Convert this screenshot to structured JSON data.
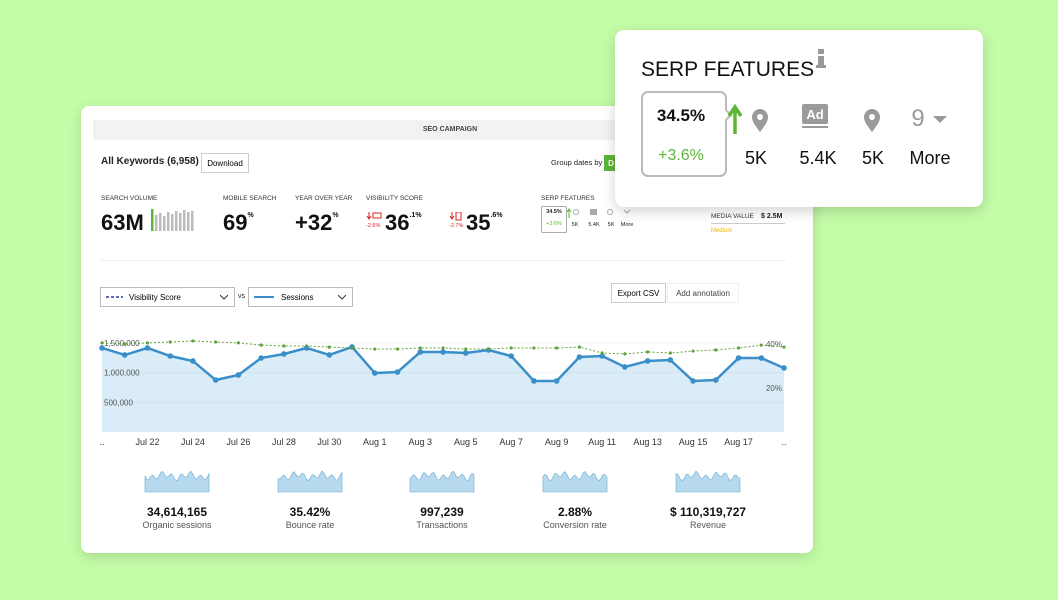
{
  "header": {
    "title": "SEO CAMPAIGN"
  },
  "toolbar": {
    "keywords": "All Keywords (6,958)",
    "download": "Download",
    "group_dates": "Group dates by",
    "group_button": "D"
  },
  "metrics": [
    {
      "label": "SEARCH VOLUME",
      "value": "63M"
    },
    {
      "label": "MOBILE SEARCH",
      "value": "69",
      "unit": "%"
    },
    {
      "label": "YEAR OVER YEAR",
      "value": "+32",
      "unit": "%"
    },
    {
      "label": "VISIBILITY SCORE",
      "value": "36",
      "unit": ".1%",
      "change": "-2.6%"
    },
    {
      "value": "35",
      "unit": ".6%",
      "change": "-2.7%"
    }
  ],
  "serp_mini": {
    "label": "SERP FEATURES",
    "share": "34.5%",
    "change": "+3.6%",
    "items": [
      "5K",
      "5.4K",
      "5K",
      "More"
    ]
  },
  "media": {
    "label": "MEDIA VALUE",
    "value": "$ 2.5M",
    "level": "Medium"
  },
  "controls": {
    "vs": "vs",
    "export": "Export CSV",
    "annotate": "Add annotation"
  },
  "chart": {
    "type": "line",
    "categories": [
      "..",
      null,
      "Jul 22",
      null,
      "Jul 24",
      null,
      "Jul 26",
      null,
      "Jul 28",
      null,
      "Jul 30",
      null,
      "Aug 1",
      null,
      "Aug 3",
      null,
      "Aug 5",
      null,
      "Aug 7",
      null,
      "Aug 9",
      null,
      "Aug 11",
      null,
      "Aug 13",
      null,
      "Aug 15",
      null,
      "Aug 17",
      null,
      ".."
    ],
    "series": [
      {
        "name": "Sessions",
        "color": "#3a8fc9",
        "values": [
          1416000,
          1298000,
          1416000,
          1281000,
          1197000,
          876000,
          961000,
          1247000,
          1315000,
          1416000,
          1298000,
          1433000,
          994000,
          1011000,
          1348000,
          1348000,
          1331000,
          1382000,
          1281000,
          860000,
          860000,
          1264000,
          1281000,
          1096000,
          1197000,
          1214000,
          860000,
          876000,
          1247000,
          1247000,
          1079000
        ]
      },
      {
        "name": "Visibility Score",
        "color": "#5ea33a",
        "axis": "y2",
        "values": [
          40.5,
          40.0,
          40.5,
          40.9,
          41.4,
          40.9,
          40.5,
          39.5,
          39.1,
          39.1,
          38.6,
          38.2,
          37.7,
          37.7,
          38.2,
          38.2,
          37.7,
          37.7,
          38.2,
          38.2,
          38.2,
          38.6,
          35.9,
          35.5,
          36.4,
          35.9,
          36.8,
          37.3,
          38.2,
          39.5,
          38.6
        ]
      }
    ],
    "ylim": [
      0,
      1500000
    ],
    "yticks": [
      {
        "value": 500000,
        "label": "500,000"
      },
      {
        "value": 1000000,
        "label": "1,000,000"
      },
      {
        "value": 1500000,
        "label": "1,500,000"
      }
    ],
    "y2lim": [
      0,
      40
    ],
    "y2ticks": [
      {
        "value": 20,
        "label": "20%"
      },
      {
        "value": 40,
        "label": "40%"
      }
    ]
  },
  "stats": [
    {
      "value": "34,614,165",
      "label": "Organic sessions"
    },
    {
      "value": "35.42%",
      "label": "Bounce rate"
    },
    {
      "value": "997,239",
      "label": "Transactions"
    },
    {
      "value": "2.88%",
      "label": "Conversion rate"
    },
    {
      "value": "$ 110,319,727",
      "label": "Revenue"
    }
  ],
  "popup": {
    "title": "SERP FEATURES",
    "share": "34.5%",
    "change": "+3.6%",
    "items": [
      "5K",
      "5.4K",
      "5K"
    ],
    "count": "9",
    "more": "More"
  }
}
